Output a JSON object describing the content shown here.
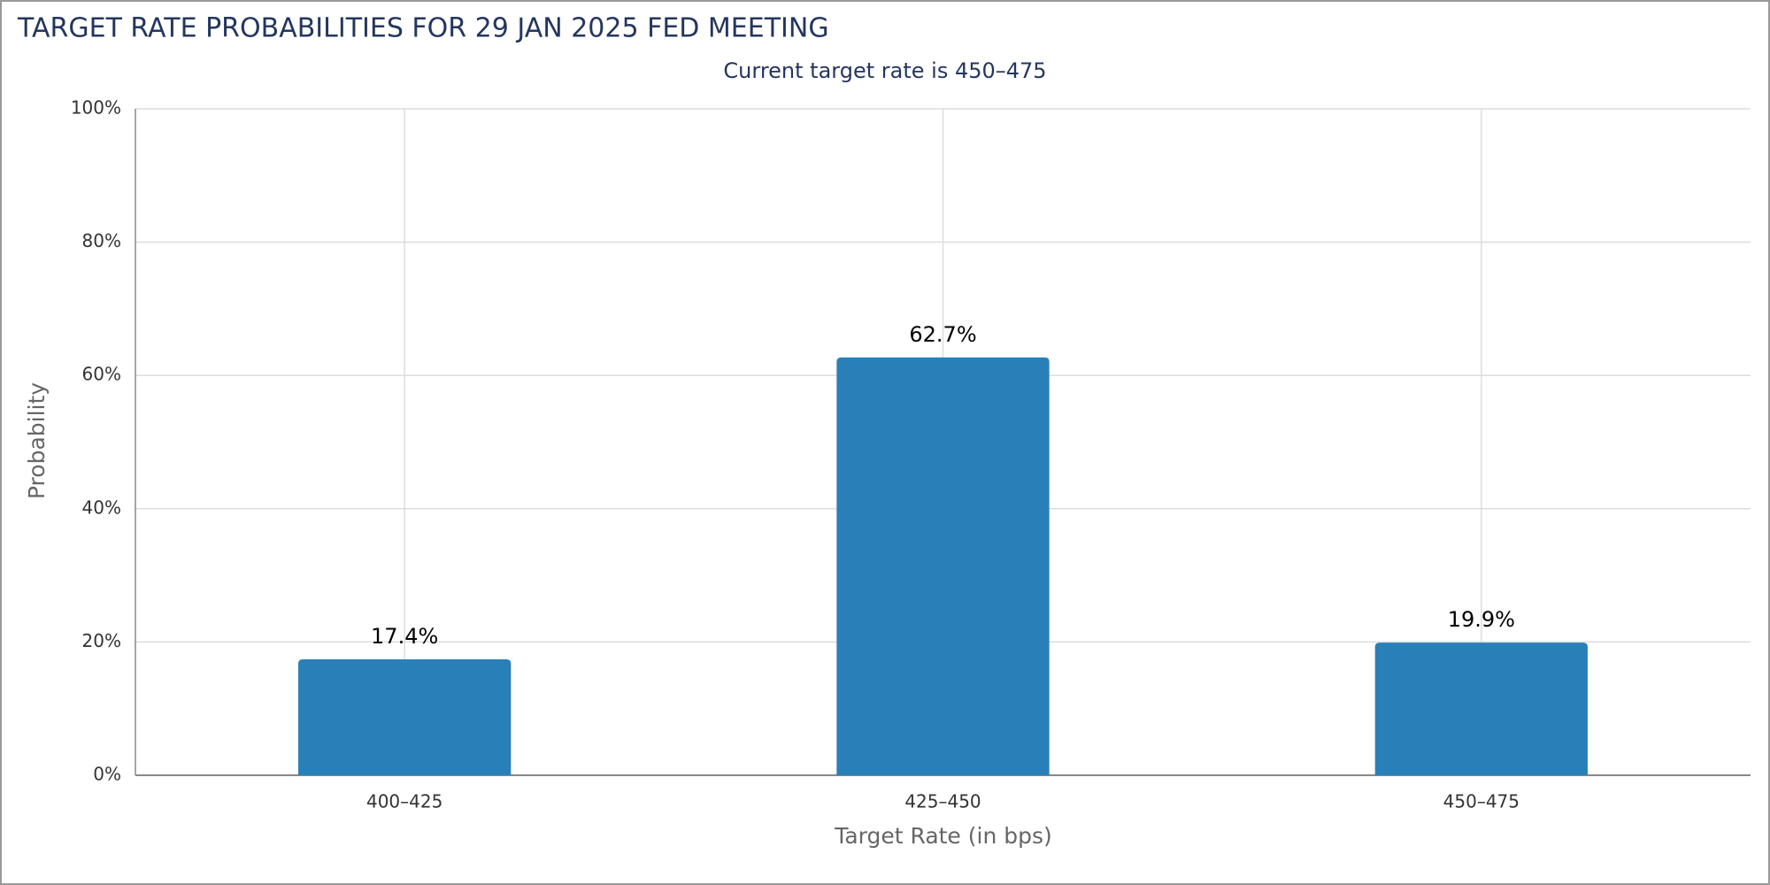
{
  "chart_data": {
    "type": "bar",
    "title": "TARGET RATE PROBABILITIES FOR 29 JAN 2025 FED MEETING",
    "subtitle": "Current target rate is 450–475",
    "x_label": "Target Rate (in bps)",
    "y_label": "Probability",
    "categories": [
      "400–425",
      "425–450",
      "450–475"
    ],
    "values": [
      17.4,
      62.7,
      19.9
    ],
    "value_labels": [
      "17.4%",
      "62.7%",
      "19.9%"
    ],
    "color": "#2980b9",
    "ylim": [
      0,
      100
    ],
    "yticks": [
      {
        "value": 0,
        "label": "0%"
      },
      {
        "value": 20,
        "label": "20%"
      },
      {
        "value": 40,
        "label": "40%"
      },
      {
        "value": 60,
        "label": "60%"
      },
      {
        "value": 80,
        "label": "80%"
      },
      {
        "value": 100,
        "label": "100%"
      }
    ],
    "grid": true
  }
}
